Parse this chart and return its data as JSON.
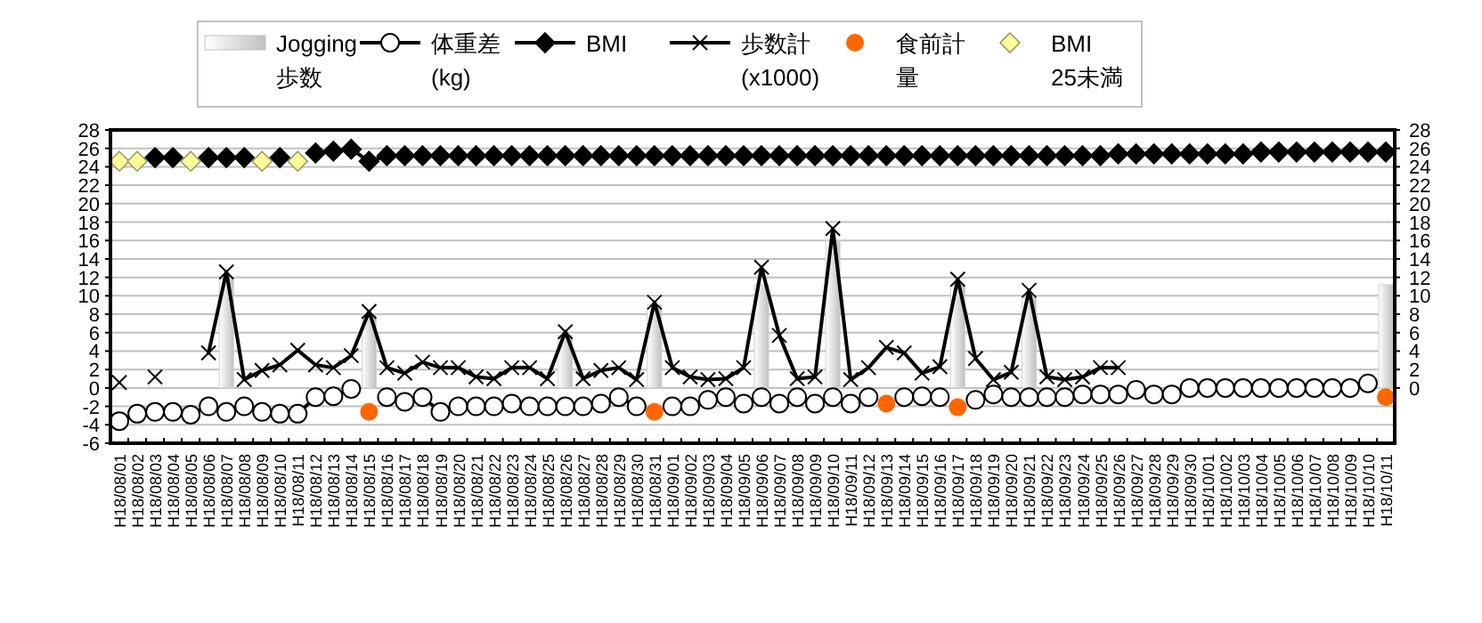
{
  "chart_data": {
    "type": "line",
    "categories": [
      "H18/08/01",
      "H18/08/02",
      "H18/08/03",
      "H18/08/04",
      "H18/08/05",
      "H18/08/06",
      "H18/08/07",
      "H18/08/08",
      "H18/08/09",
      "H18/08/10",
      "H18/08/11",
      "H18/08/12",
      "H18/08/13",
      "H18/08/14",
      "H18/08/15",
      "H18/08/16",
      "H18/08/17",
      "H18/08/18",
      "H18/08/19",
      "H18/08/20",
      "H18/08/21",
      "H18/08/22",
      "H18/08/23",
      "H18/08/24",
      "H18/08/25",
      "H18/08/26",
      "H18/08/27",
      "H18/08/28",
      "H18/08/29",
      "H18/08/30",
      "H18/08/31",
      "H18/09/01",
      "H18/09/02",
      "H18/09/03",
      "H18/09/04",
      "H18/09/05",
      "H18/09/06",
      "H18/09/07",
      "H18/09/08",
      "H18/09/09",
      "H18/09/10",
      "H18/09/11",
      "H18/09/12",
      "H18/09/13",
      "H18/09/14",
      "H18/09/15",
      "H18/09/16",
      "H18/09/17",
      "H18/09/18",
      "H18/09/19",
      "H18/09/20",
      "H18/09/21",
      "H18/09/22",
      "H18/09/23",
      "H18/09/24",
      "H18/09/25",
      "H18/09/26",
      "H18/09/27",
      "H18/09/28",
      "H18/09/29",
      "H18/09/30",
      "H18/10/01",
      "H18/10/02",
      "H18/10/03",
      "H18/10/04",
      "H18/10/05",
      "H18/10/06",
      "H18/10/07",
      "H18/10/08",
      "H18/10/09",
      "H18/10/10",
      "H18/10/11"
    ],
    "series": [
      {
        "name": "Jogging\n歩数",
        "type": "bar",
        "color": "#c0c0c0",
        "values": [
          null,
          null,
          null,
          null,
          null,
          null,
          11.8,
          null,
          null,
          null,
          null,
          null,
          null,
          null,
          8.0,
          null,
          null,
          null,
          null,
          null,
          null,
          null,
          null,
          null,
          null,
          5.7,
          null,
          null,
          null,
          null,
          9.0,
          null,
          null,
          null,
          null,
          null,
          11.2,
          null,
          null,
          null,
          16.0,
          null,
          null,
          null,
          null,
          null,
          null,
          11.2,
          null,
          null,
          null,
          9.9,
          null,
          null,
          null,
          null,
          null,
          null,
          null,
          null,
          null,
          null,
          null,
          null,
          null,
          null,
          null,
          null,
          null,
          null,
          null,
          11.2
        ]
      },
      {
        "name": "体重差\n(kg)",
        "marker": "circle",
        "color": "#000000",
        "values": [
          -3.6,
          -2.8,
          -2.6,
          -2.6,
          -2.9,
          -2.0,
          -2.6,
          -2.0,
          -2.6,
          -2.8,
          -2.8,
          -1.0,
          -0.9,
          -0.1,
          null,
          -1.0,
          -1.5,
          -1.0,
          -2.6,
          -2.0,
          -2.0,
          -2.0,
          -1.7,
          -2.0,
          -2.0,
          -2.0,
          -2.0,
          -1.7,
          -1.0,
          -2.0,
          null,
          -2.0,
          -2.0,
          -1.3,
          -1.0,
          -1.7,
          -1.0,
          -1.7,
          -1.0,
          -1.7,
          -1.0,
          -1.7,
          -1.0,
          null,
          -1.0,
          -0.9,
          -1.0,
          null,
          -1.3,
          -0.7,
          -1.0,
          -1.0,
          -1.0,
          -1.0,
          -0.7,
          -0.7,
          -0.7,
          -0.2,
          -0.7,
          -0.7,
          0,
          0,
          0,
          0,
          0,
          0,
          0,
          0,
          0,
          0,
          0.5,
          null
        ]
      },
      {
        "name": "BMI",
        "marker": "diamond",
        "color": "#000000",
        "values": [
          null,
          null,
          25.0,
          25.0,
          null,
          25.0,
          25.0,
          25.0,
          null,
          25.0,
          null,
          25.5,
          25.7,
          25.9,
          24.6,
          25.2,
          25.2,
          25.2,
          25.2,
          25.2,
          25.2,
          25.2,
          25.2,
          25.2,
          25.2,
          25.2,
          25.2,
          25.2,
          25.2,
          25.2,
          25.2,
          25.2,
          25.2,
          25.2,
          25.2,
          25.2,
          25.2,
          25.2,
          25.2,
          25.2,
          25.2,
          25.2,
          25.2,
          25.2,
          25.2,
          25.2,
          25.2,
          25.2,
          25.2,
          25.2,
          25.2,
          25.2,
          25.2,
          25.2,
          25.2,
          25.2,
          25.4,
          25.4,
          25.4,
          25.4,
          25.4,
          25.4,
          25.4,
          25.4,
          25.6,
          25.6,
          25.6,
          25.6,
          25.6,
          25.6,
          25.6,
          25.6
        ]
      },
      {
        "name": "歩数計\n(x1000)",
        "marker": "cross",
        "color": "#000000",
        "values": [
          0.6,
          null,
          1.2,
          null,
          null,
          3.8,
          12.6,
          0.9,
          1.9,
          2.5,
          4.1,
          2.5,
          2.2,
          3.5,
          8.3,
          2.2,
          1.6,
          2.8,
          2.2,
          2.2,
          1.2,
          1.0,
          2.2,
          2.2,
          1.0,
          6.1,
          1.0,
          1.9,
          2.2,
          0.9,
          9.3,
          2.2,
          1.2,
          0.9,
          1.0,
          2.2,
          13.1,
          5.7,
          1.0,
          1.2,
          17.3,
          0.9,
          2.2,
          4.4,
          3.8,
          1.6,
          2.3,
          11.8,
          3.2,
          0.9,
          1.7,
          10.6,
          1.2,
          0.9,
          1.2,
          2.2,
          2.2,
          null,
          null,
          null,
          null,
          null,
          null,
          null,
          null,
          null,
          null,
          null,
          null,
          null,
          null,
          null
        ]
      },
      {
        "name": "食前計量",
        "type": "scatter",
        "marker": "circle",
        "color": "#ff6600",
        "values": [
          null,
          null,
          null,
          null,
          null,
          null,
          null,
          null,
          null,
          null,
          null,
          null,
          null,
          null,
          -2.6,
          null,
          null,
          null,
          null,
          null,
          null,
          null,
          null,
          null,
          null,
          null,
          null,
          null,
          null,
          null,
          -2.6,
          null,
          null,
          null,
          null,
          null,
          null,
          null,
          null,
          null,
          null,
          null,
          null,
          -1.7,
          null,
          null,
          null,
          -2.1,
          null,
          null,
          null,
          null,
          null,
          null,
          null,
          null,
          null,
          null,
          null,
          null,
          null,
          null,
          null,
          null,
          null,
          null,
          null,
          null,
          null,
          null,
          null,
          -1.0
        ]
      },
      {
        "name": "BMI\n25未満",
        "type": "scatter",
        "marker": "diamond",
        "color": "#ffff99",
        "values": [
          24.6,
          24.6,
          null,
          null,
          24.6,
          null,
          null,
          null,
          24.6,
          null,
          24.6,
          null,
          null,
          null,
          null,
          null,
          null,
          null,
          null,
          null,
          null,
          null,
          null,
          null,
          null,
          null,
          null,
          null,
          null,
          null,
          null,
          null,
          null,
          null,
          null,
          null,
          null,
          null,
          null,
          null,
          null,
          null,
          null,
          null,
          null,
          null,
          null,
          null,
          null,
          null,
          null,
          null,
          null,
          null,
          null,
          null,
          null,
          null,
          null,
          null,
          null,
          null,
          null,
          null,
          null,
          null,
          null,
          null,
          null,
          null,
          null,
          null
        ]
      }
    ],
    "ylim": [
      -6,
      28
    ],
    "yticks": [
      28,
      26,
      24,
      22,
      20,
      18,
      16,
      14,
      12,
      10,
      8,
      6,
      4,
      2,
      0,
      {
        "value": -2,
        "label": "-2"
      },
      {
        "value": -4,
        "label": "-4"
      },
      {
        "value": -6,
        "label": "-6"
      }
    ],
    "y2lim": [
      -6,
      28
    ],
    "y2ticks": [
      28,
      26,
      24,
      22,
      20,
      18,
      16,
      14,
      12,
      10,
      8,
      6,
      4,
      2,
      0
    ],
    "grid": "y",
    "legend": "top"
  }
}
